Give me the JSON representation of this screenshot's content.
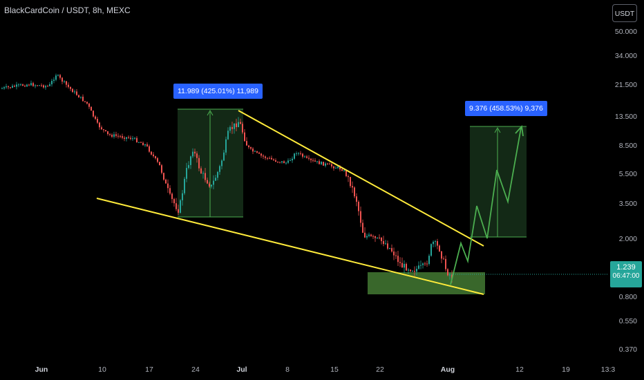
{
  "header": {
    "symbol_title": "BlackCardCoin / USDT, 8h, MEXC"
  },
  "toolbar": {
    "currency_button": "USDT"
  },
  "price_axis": {
    "ticks": [
      "50.000",
      "34.000",
      "21.500",
      "13.500",
      "8.500",
      "5.500",
      "3.500",
      "2.000",
      "0.800",
      "0.550",
      "0.370"
    ]
  },
  "time_axis": {
    "labels": [
      {
        "text": "Jun",
        "bold": true
      },
      {
        "text": "10",
        "bold": false
      },
      {
        "text": "17",
        "bold": false
      },
      {
        "text": "24",
        "bold": false
      },
      {
        "text": "Jul",
        "bold": true
      },
      {
        "text": "8",
        "bold": false
      },
      {
        "text": "15",
        "bold": false
      },
      {
        "text": "22",
        "bold": false
      },
      {
        "text": "Aug",
        "bold": true
      },
      {
        "text": "12",
        "bold": false
      },
      {
        "text": "19",
        "bold": false
      },
      {
        "text": "13:3",
        "bold": false
      }
    ]
  },
  "current_price": {
    "value": "1.239",
    "countdown": "06:47:00",
    "color": "#26a69a"
  },
  "annotations": {
    "measure_1": "11.989 (425.01%) 11,989",
    "measure_2": "9.376 (458.53%) 9,376"
  },
  "colors": {
    "up": "#26a69a",
    "down": "#ef5350",
    "trendline": "#ffeb3b",
    "projection": "#4caf50",
    "callout": "#2962ff",
    "background": "#000000"
  }
}
